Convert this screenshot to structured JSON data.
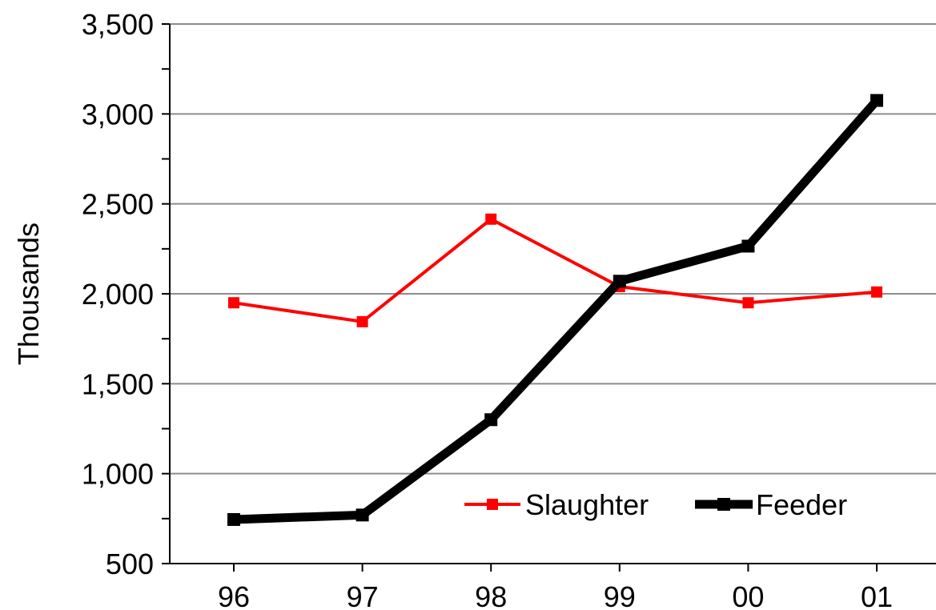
{
  "chart_data": {
    "type": "line",
    "title": "",
    "xlabel": "",
    "ylabel": "Thousands",
    "categories": [
      "96",
      "97",
      "98",
      "99",
      "00",
      "01"
    ],
    "ylim": [
      500,
      3500
    ],
    "y_ticks": [
      500,
      1000,
      1500,
      2000,
      2500,
      3000,
      3500
    ],
    "y_tick_labels": [
      "500",
      "1,000",
      "1,500",
      "2,000",
      "2,500",
      "3,000",
      "3,500"
    ],
    "grid": true,
    "legend_position": "bottom-right",
    "series": [
      {
        "name": "Slaughter",
        "color": "#ff0000",
        "values": [
          1950,
          1845,
          2415,
          2040,
          1950,
          2010
        ]
      },
      {
        "name": "Feeder",
        "color": "#000000",
        "values": [
          745,
          770,
          1300,
          2070,
          2265,
          3075
        ]
      }
    ]
  }
}
